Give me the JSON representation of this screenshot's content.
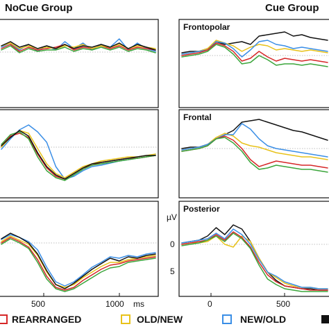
{
  "chart_data": {
    "type": "line",
    "titles": {
      "left": "NoCue Group",
      "right": "Cue Group"
    },
    "y_unit": "µV",
    "y_ticks": [
      "0",
      "5"
    ],
    "x_ticks_left": [
      "500",
      "1000",
      "ms"
    ],
    "x_ticks_right": [
      "0",
      "500"
    ],
    "legend": [
      {
        "label": "REARRANGED",
        "color": "#d62728"
      },
      {
        "label": "OLD/NEW",
        "color": "#e8c21a"
      },
      {
        "label": "NEW/OLD",
        "color": "#3a8ee6"
      },
      {
        "label": "",
        "color": "#111111"
      }
    ],
    "extra_colors": [
      "#3aa53a"
    ],
    "panels": [
      {
        "group": "nocue",
        "row": 0,
        "label": "",
        "traces": [
          {
            "color": "#3a8ee6",
            "values": [
              68,
              62,
              72,
              64,
              74,
              66,
              72,
              60,
              70,
              62,
              72,
              64,
              68,
              56,
              72,
              62,
              70,
              74
            ]
          },
          {
            "color": "#d62728",
            "values": [
              70,
              64,
              74,
              68,
              72,
              70,
              68,
              64,
              72,
              68,
              70,
              66,
              70,
              66,
              72,
              68,
              70,
              72
            ]
          },
          {
            "color": "#e8c21a",
            "values": [
              66,
              62,
              70,
              66,
              70,
              68,
              70,
              66,
              68,
              64,
              70,
              66,
              68,
              64,
              70,
              66,
              68,
              70
            ]
          },
          {
            "color": "#3aa53a",
            "values": [
              72,
              66,
              76,
              70,
              74,
              72,
              72,
              68,
              74,
              70,
              72,
              68,
              72,
              68,
              74,
              70,
              72,
              76
            ]
          },
          {
            "color": "#111111",
            "values": [
              66,
              60,
              68,
              64,
              70,
              66,
              70,
              64,
              70,
              66,
              68,
              64,
              68,
              62,
              70,
              64,
              68,
              72
            ]
          }
        ]
      },
      {
        "group": "nocue",
        "row": 1,
        "label": "",
        "traces": [
          {
            "color": "#3a8ee6",
            "values": [
              215,
              200,
              187,
              180,
              190,
              205,
              240,
              258,
              254,
              246,
              240,
              238,
              235,
              232,
              230,
              228,
              226,
              222
            ]
          },
          {
            "color": "#e8c21a",
            "values": [
              212,
              198,
              188,
              192,
              214,
              236,
              250,
              256,
              248,
              240,
              236,
              232,
              230,
              228,
              226,
              226,
              224,
              222
            ]
          },
          {
            "color": "#d62728",
            "values": [
              210,
              196,
              192,
              198,
              222,
              242,
              254,
              258,
              250,
              242,
              238,
              234,
              232,
              230,
              228,
              228,
              226,
              224
            ]
          },
          {
            "color": "#3aa53a",
            "values": [
              208,
              194,
              190,
              200,
              226,
              246,
              256,
              260,
              252,
              244,
              238,
              236,
              234,
              232,
              230,
              228,
              226,
              224
            ]
          },
          {
            "color": "#111111",
            "values": [
              210,
              198,
              188,
              196,
              220,
              240,
              252,
              258,
              250,
              242,
              236,
              234,
              232,
              230,
              228,
              226,
              224,
              224
            ]
          }
        ]
      },
      {
        "group": "nocue",
        "row": 2,
        "label": "",
        "traces": [
          {
            "color": "#3a8ee6",
            "values": [
              345,
              338,
              342,
              348,
              360,
              385,
              406,
              412,
              406,
              396,
              385,
              378,
              370,
              372,
              368,
              370,
              366,
              364
            ]
          },
          {
            "color": "#e8c21a",
            "values": [
              348,
              340,
              346,
              352,
              368,
              392,
              410,
              414,
              410,
              400,
              392,
              384,
              378,
              378,
              374,
              372,
              370,
              368
            ]
          },
          {
            "color": "#d62728",
            "values": [
              350,
              342,
              348,
              356,
              374,
              398,
              414,
              418,
              414,
              404,
              396,
              388,
              382,
              380,
              376,
              374,
              372,
              370
            ]
          },
          {
            "color": "#3aa53a",
            "values": [
              352,
              344,
              350,
              358,
              378,
              402,
              416,
              420,
              416,
              408,
              400,
              392,
              386,
              384,
              378,
              376,
              374,
              372
            ]
          },
          {
            "color": "#111111",
            "values": [
              344,
              336,
              342,
              350,
              366,
              390,
              410,
              416,
              408,
              398,
              388,
              380,
              372,
              376,
              370,
              372,
              368,
              366
            ]
          }
        ]
      },
      {
        "group": "cue",
        "row": 0,
        "label": "Frontopolar",
        "traces": [
          {
            "color": "#111111",
            "values": [
              76,
              74,
              74,
              70,
              60,
              64,
              62,
              60,
              64,
              52,
              50,
              48,
              46,
              52,
              50,
              54,
              56,
              58
            ]
          },
          {
            "color": "#e8c21a",
            "values": [
              78,
              76,
              74,
              70,
              58,
              62,
              66,
              74,
              68,
              64,
              66,
              72,
              70,
              72,
              74,
              72,
              74,
              76
            ]
          },
          {
            "color": "#3a8ee6",
            "values": [
              78,
              76,
              74,
              72,
              60,
              62,
              70,
              82,
              72,
              60,
              58,
              64,
              66,
              70,
              68,
              70,
              72,
              74
            ]
          },
          {
            "color": "#d62728",
            "values": [
              80,
              78,
              76,
              72,
              62,
              66,
              74,
              88,
              84,
              74,
              82,
              88,
              84,
              86,
              88,
              86,
              88,
              90
            ]
          },
          {
            "color": "#3aa53a",
            "values": [
              82,
              80,
              78,
              74,
              64,
              68,
              78,
              92,
              90,
              80,
              86,
              94,
              92,
              92,
              94,
              92,
              94,
              96
            ]
          }
        ]
      },
      {
        "group": "cue",
        "row": 1,
        "label": "Frontal",
        "traces": [
          {
            "color": "#111111",
            "values": [
              214,
              212,
              212,
              208,
              200,
              194,
              188,
              176,
              174,
              172,
              176,
              180,
              184,
              188,
              190,
              194,
              198,
              202
            ]
          },
          {
            "color": "#e8c21a",
            "values": [
              216,
              214,
              212,
              208,
              198,
              192,
              196,
              206,
              210,
              212,
              216,
              220,
              222,
              224,
              226,
              226,
              228,
              230
            ]
          },
          {
            "color": "#3a8ee6",
            "values": [
              216,
              214,
              212,
              208,
              200,
              194,
              194,
              178,
              186,
              200,
              210,
              214,
              216,
              218,
              220,
              222,
              224,
              226
            ]
          },
          {
            "color": "#d62728",
            "values": [
              218,
              216,
              214,
              210,
              200,
              196,
              202,
              214,
              230,
              240,
              236,
              232,
              234,
              236,
              238,
              238,
              240,
              242
            ]
          },
          {
            "color": "#3aa53a",
            "values": [
              218,
              216,
              214,
              210,
              200,
              198,
              206,
              218,
              234,
              244,
              242,
              238,
              240,
              242,
              244,
              244,
              246,
              248
            ]
          }
        ]
      },
      {
        "group": "cue",
        "row": 2,
        "label": "Posterior",
        "traces": [
          {
            "color": "#111111",
            "values": [
              350,
              348,
              346,
              340,
              328,
              338,
              324,
              330,
              348,
              372,
              392,
              404,
              412,
              414,
              416,
              416,
              418,
              418
            ]
          },
          {
            "color": "#e8c21a",
            "values": [
              352,
              350,
              350,
              348,
              340,
              352,
              356,
              340,
              348,
              372,
              392,
              400,
              408,
              412,
              414,
              414,
              416,
              416
            ]
          },
          {
            "color": "#3a8ee6",
            "values": [
              350,
              348,
              346,
              344,
              336,
              344,
              330,
              338,
              352,
              374,
              392,
              398,
              406,
              410,
              414,
              414,
              416,
              416
            ]
          },
          {
            "color": "#d62728",
            "values": [
              352,
              350,
              348,
              346,
              338,
              346,
              334,
              342,
              356,
              378,
              396,
              406,
              412,
              414,
              416,
              418,
              418,
              418
            ]
          },
          {
            "color": "#3aa53a",
            "values": [
              354,
              352,
              350,
              346,
              340,
              348,
              336,
              344,
              358,
              382,
              402,
              410,
              416,
              418,
              420,
              420,
              420,
              420
            ]
          }
        ]
      }
    ]
  }
}
